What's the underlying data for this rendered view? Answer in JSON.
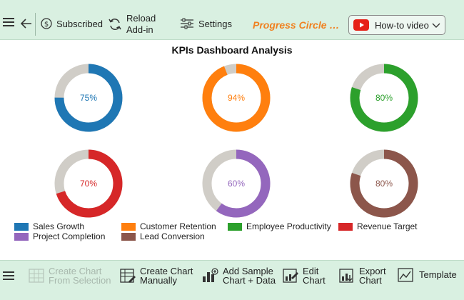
{
  "toolbar": {
    "subscribed_label": "Subscribed",
    "reload_line1": "Reload",
    "reload_line2": "Add-in",
    "settings_label": "Settings",
    "brand_title": "Progress Circle Chart",
    "howto_label": "How-to video"
  },
  "colors": {
    "toolbar_bg": "#d9f0e1",
    "brand": "#f08120",
    "track": "#d0cdc7",
    "youtube_red": "#e62117"
  },
  "icons": {
    "menu": "hamburger-icon",
    "back": "arrow-left-icon",
    "subscribed": "dollar-circle-icon",
    "reload": "refresh-icon",
    "settings": "sliders-icon",
    "howto": "youtube-icon",
    "dropdown": "chevron-down-icon"
  },
  "chart_data": {
    "type": "donut",
    "title": "KPIs Dashboard Analysis",
    "series": [
      {
        "name": "Sales Growth",
        "value": 75,
        "label": "75%",
        "color": "#1f77b4"
      },
      {
        "name": "Customer Retention",
        "value": 94,
        "label": "94%",
        "color": "#ff7f0e"
      },
      {
        "name": "Employee Productivity",
        "value": 80,
        "label": "80%",
        "color": "#2ca02c"
      },
      {
        "name": "Revenue Target",
        "value": 70,
        "label": "70%",
        "color": "#d62728"
      },
      {
        "name": "Project Completion",
        "value": 60,
        "label": "60%",
        "color": "#9467bd"
      },
      {
        "name": "Lead Conversion",
        "value": 80,
        "label": "80%",
        "color": "#8c564b"
      }
    ],
    "max": 100,
    "remainder_color": "#d0cdc7",
    "legend_position": "bottom-left"
  },
  "bottombar": {
    "create_from_selection_line1": "Create Chart",
    "create_from_selection_line2": "From Selection",
    "create_manual_line1": "Create Chart",
    "create_manual_line2": "Manually",
    "add_sample_line1": "Add Sample",
    "add_sample_line2": "Chart + Data",
    "edit_line1": "Edit",
    "edit_line2": "Chart",
    "export_line1": "Export",
    "export_line2": "Chart",
    "template_label": "Template"
  }
}
